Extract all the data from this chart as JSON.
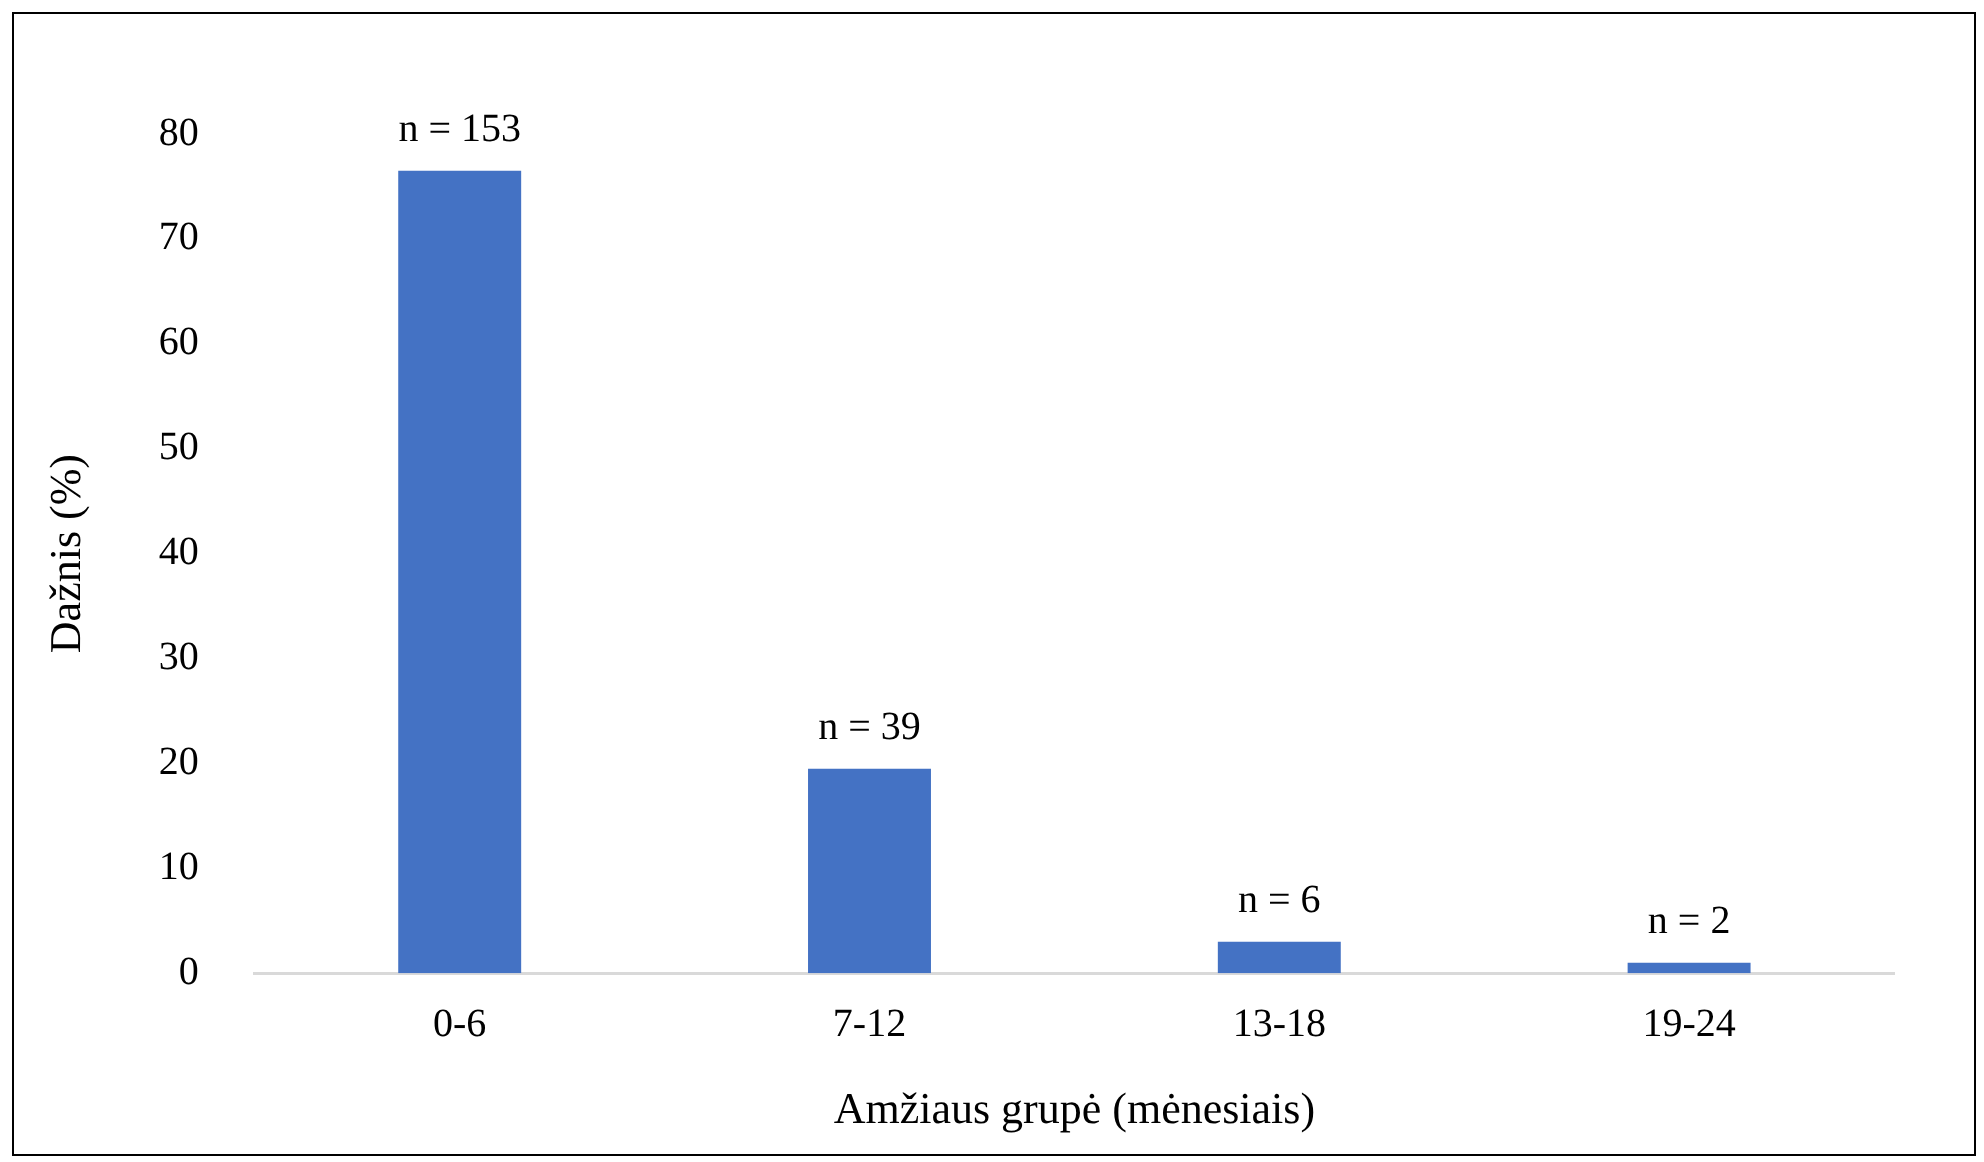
{
  "chart_data": {
    "type": "bar",
    "xlabel": "Amžiaus grupė (mėnesiais)",
    "ylabel": "Dažnis (%)",
    "categories": [
      "0-6",
      "7-12",
      "13-18",
      "19-24"
    ],
    "values": [
      76.5,
      19.5,
      3,
      1
    ],
    "color": "#4472c4",
    "ylim": [
      0,
      80
    ],
    "yticks": [
      0,
      10,
      20,
      30,
      40,
      50,
      60,
      70,
      80
    ],
    "grid": false,
    "legend": false,
    "annotations": [
      {
        "text": "n = 153",
        "x": "0-6",
        "y": 76.5
      },
      {
        "text": "n = 39",
        "x": "7-12",
        "y": 19.5
      },
      {
        "text": "n = 6",
        "x": "13-18",
        "y": 3
      },
      {
        "text": "n = 2",
        "x": "19-24",
        "y": 1
      }
    ]
  }
}
